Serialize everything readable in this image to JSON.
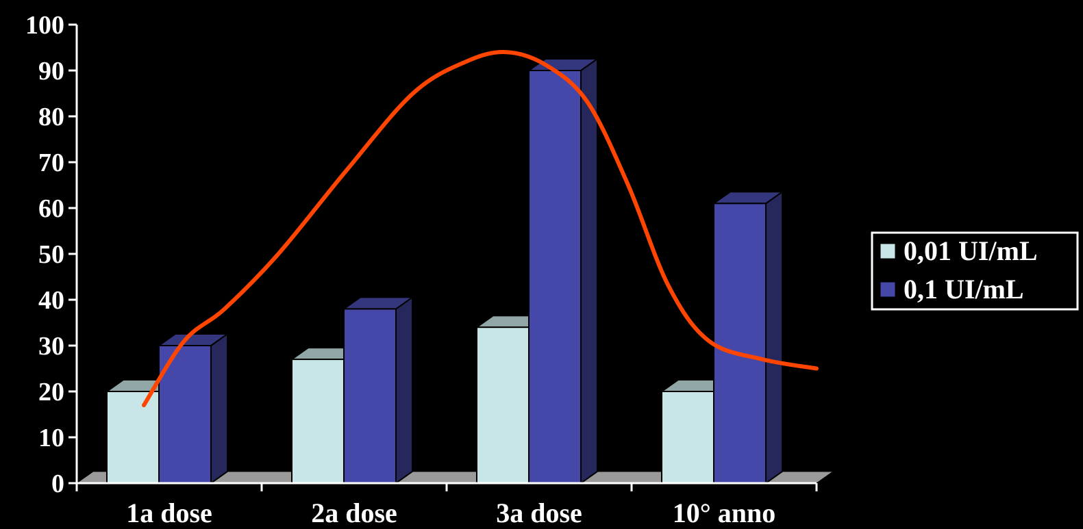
{
  "chart_data": {
    "type": "bar",
    "categories": [
      "1a dose",
      "2a dose",
      "3a dose",
      "10° anno"
    ],
    "series": [
      {
        "name": "0,01 UI/mL",
        "values": [
          20,
          27,
          34,
          20
        ],
        "color": "#c8e6e8"
      },
      {
        "name": "0,1 UI/mL",
        "values": [
          30,
          38,
          90,
          61
        ],
        "color": "#4548a8"
      }
    ],
    "yticks": [
      0,
      10,
      20,
      30,
      40,
      50,
      60,
      70,
      80,
      90,
      100
    ],
    "ylim": [
      0,
      100
    ],
    "title": "",
    "xlabel": "",
    "ylabel": "",
    "legend_position": "right",
    "trend_line": {
      "color": "#ff4500",
      "points": [
        {
          "x": 0.0,
          "y": 17
        },
        {
          "x": 0.3,
          "y": 31
        },
        {
          "x": 0.6,
          "y": 38
        },
        {
          "x": 1.0,
          "y": 50
        },
        {
          "x": 1.5,
          "y": 68
        },
        {
          "x": 2.0,
          "y": 85
        },
        {
          "x": 2.4,
          "y": 92
        },
        {
          "x": 2.7,
          "y": 94
        },
        {
          "x": 3.0,
          "y": 91
        },
        {
          "x": 3.3,
          "y": 83
        },
        {
          "x": 3.6,
          "y": 65
        },
        {
          "x": 3.9,
          "y": 43
        },
        {
          "x": 4.2,
          "y": 31
        },
        {
          "x": 4.6,
          "y": 27
        },
        {
          "x": 5.0,
          "y": 25
        }
      ]
    },
    "grid": false,
    "background": "#000000",
    "floor_color": "#9a9a9a"
  }
}
